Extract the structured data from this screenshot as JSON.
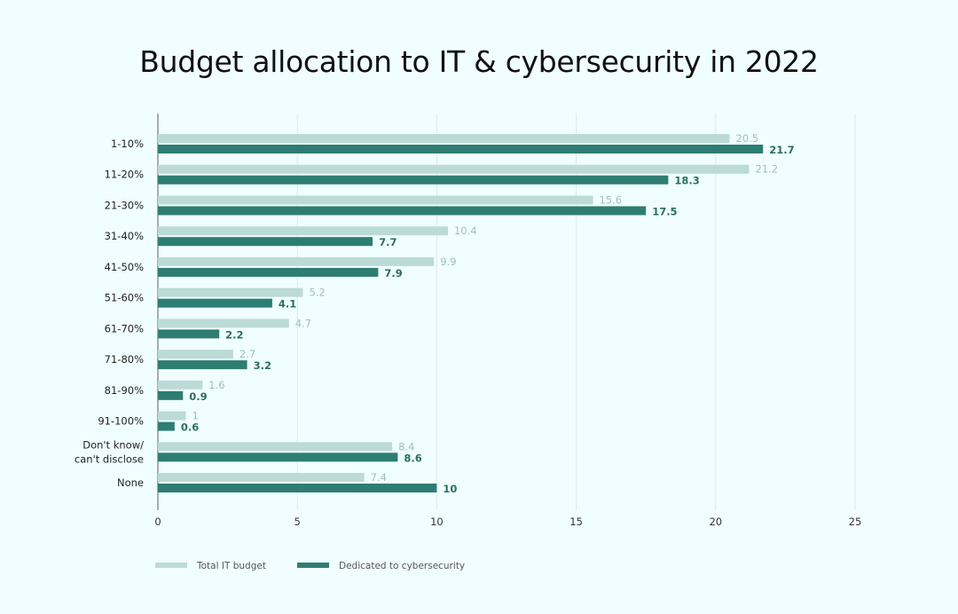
{
  "chart_data": {
    "type": "bar",
    "orientation": "horizontal",
    "title": "Budget allocation to IT & cybersecurity in 2022",
    "categories": [
      "1-10%",
      "11-20%",
      "21-30%",
      "31-40%",
      "41-50%",
      "51-60%",
      "61-70%",
      "71-80%",
      "81-90%",
      "91-100%",
      "Don't know/\ncan't disclose",
      "None"
    ],
    "series": [
      {
        "name": "Total IT budget",
        "color": "#bddbd6",
        "values": [
          20.5,
          21.2,
          15.6,
          10.4,
          9.9,
          5.2,
          4.7,
          2.7,
          1.6,
          1,
          8.4,
          7.4
        ]
      },
      {
        "name": "Dedicated to cybersecurity",
        "color": "#2e7d72",
        "values": [
          21.7,
          18.3,
          17.5,
          7.7,
          7.9,
          4.1,
          2.2,
          3.2,
          0.9,
          0.6,
          8.6,
          10
        ]
      }
    ],
    "xlim": [
      0,
      25
    ],
    "xticks": [
      0,
      5,
      10,
      15,
      20,
      25
    ],
    "grid": true,
    "legend": "bottom-left",
    "xlabel": "",
    "ylabel": ""
  }
}
